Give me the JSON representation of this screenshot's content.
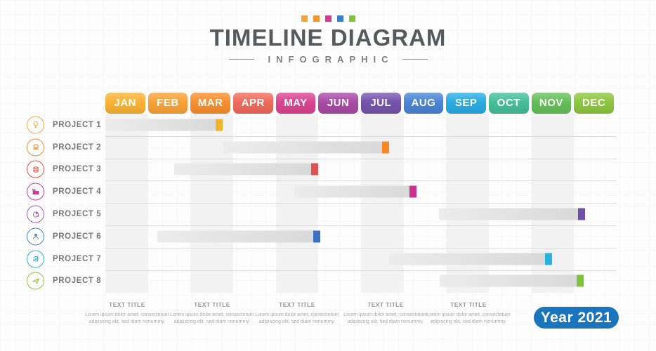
{
  "header": {
    "title": "TIMELINE DIAGRAM",
    "subtitle": "INFOGRAPHIC",
    "accent_squares": [
      "#F2A63B",
      "#F2953B",
      "#D04090",
      "#3E7EC6",
      "#82C341"
    ]
  },
  "months": [
    {
      "label": "JAN",
      "color": "#F9B233"
    },
    {
      "label": "FEB",
      "color": "#F8A137"
    },
    {
      "label": "MAR",
      "color": "#F78E2E"
    },
    {
      "label": "APR",
      "color": "#EE6A5B"
    },
    {
      "label": "MAY",
      "color": "#D94490"
    },
    {
      "label": "JUN",
      "color": "#A84BA6"
    },
    {
      "label": "JUL",
      "color": "#7453AC"
    },
    {
      "label": "AUG",
      "color": "#4A84D4"
    },
    {
      "label": "SEP",
      "color": "#29ABE2"
    },
    {
      "label": "OCT",
      "color": "#45BE96"
    },
    {
      "label": "NOV",
      "color": "#64BE58"
    },
    {
      "label": "DEC",
      "color": "#8DC63F"
    }
  ],
  "projects": [
    {
      "label": "PROJECT 1",
      "icon": "lightbulb-icon",
      "icon_color": "#F0AC44",
      "bar": {
        "start_month": 0.0,
        "end_month": 2.75,
        "cap_color": "#F0B32E"
      }
    },
    {
      "label": "PROJECT 2",
      "icon": "laptop-icon",
      "icon_color": "#F08B3C",
      "bar": {
        "start_month": 2.77,
        "end_month": 6.66,
        "cap_color": "#F5882B"
      }
    },
    {
      "label": "PROJECT 3",
      "icon": "coins-icon",
      "icon_color": "#E2574C",
      "bar": {
        "start_month": 1.62,
        "end_month": 5.0,
        "cap_color": "#DD5352"
      }
    },
    {
      "label": "PROJECT 4",
      "icon": "folder-icon",
      "icon_color": "#CC3E92",
      "bar": {
        "start_month": 4.43,
        "end_month": 7.3,
        "cap_color": "#C9328F"
      }
    },
    {
      "label": "PROJECT 5",
      "icon": "pie-chart-icon",
      "icon_color": "#A85BB8",
      "bar": {
        "start_month": 7.83,
        "end_month": 11.26,
        "cap_color": "#6B52A8"
      }
    },
    {
      "label": "PROJECT 6",
      "icon": "user-icon",
      "icon_color": "#4A84C9",
      "bar": {
        "start_month": 1.22,
        "end_month": 5.04,
        "cap_color": "#3A6FC2"
      }
    },
    {
      "label": "PROJECT 7",
      "icon": "bar-chart-icon",
      "icon_color": "#31B3D8",
      "bar": {
        "start_month": 6.66,
        "end_month": 10.48,
        "cap_color": "#29B1DC"
      }
    },
    {
      "label": "PROJECT 8",
      "icon": "paper-plane-icon",
      "icon_color": "#8DC63F",
      "bar": {
        "start_month": 7.85,
        "end_month": 11.22,
        "cap_color": "#7FC241"
      }
    }
  ],
  "gantt": {
    "striped_months": [
      0,
      2,
      4,
      6,
      8,
      10
    ],
    "stripe_color": "#F2F2F3",
    "line_color": "#DCDCDD",
    "bar_gradient": [
      "#ECECEC",
      "#D8D8D8"
    ]
  },
  "footnotes": [
    {
      "title": "TEXT TITLE",
      "body": "Lorem ipsum dolor amet, consectetuer adipiscing elit, sed diam nonummy."
    },
    {
      "title": "TEXT TITLE",
      "body": "Lorem ipsum dolor amet, consectetuer adipiscing elit, sed diam nonummy."
    },
    {
      "title": "TEXT TITLE",
      "body": "Lorem ipsum dolor amet, consectetuer adipiscing elit, sed diam nonummy."
    },
    {
      "title": "TEXT TITLE",
      "body": "Lorem ipsum dolor amet, consectetuer adipiscing elit, sed diam nonummy."
    },
    {
      "title": "TEXT TITLE",
      "body": "Lorem ipsum dolor amet, consectetuer adipiscing elit, sed diam nonummy."
    }
  ],
  "year_badge": {
    "label": "Year 2021",
    "color": "#1A75BC"
  }
}
